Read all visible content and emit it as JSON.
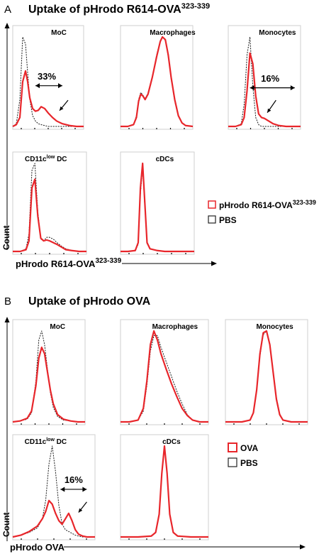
{
  "panel_a": {
    "letter": "A",
    "title": "Uptake of pHrodo R614-OVA",
    "title_sup": "323-339",
    "y_label": "Count",
    "x_label": "pHrodo R614-OVA",
    "x_label_sup": "323-339",
    "legend": [
      {
        "label": "pHrodo R614-OVA",
        "sup": "323-339",
        "color": "#e8262b"
      },
      {
        "label": "PBS",
        "sup": "",
        "color": "#222222"
      }
    ]
  },
  "panel_b": {
    "letter": "B",
    "title": "Uptake of pHrodo OVA",
    "y_label": "Count",
    "x_label": "pHrodo OVA",
    "legend": [
      {
        "label": "OVA",
        "sup": "",
        "color": "#e8262b"
      },
      {
        "label": "PBS",
        "sup": "",
        "color": "#222222"
      }
    ]
  },
  "colors": {
    "treated": "#e8262b",
    "control": "#1a1a1a",
    "frame": "#cfcfcf"
  },
  "chart_data": [
    {
      "type": "area",
      "panel": "A",
      "title": "MoC",
      "annotation": "33%",
      "x": [
        0.0,
        0.05,
        0.1,
        0.14,
        0.18,
        0.21,
        0.24,
        0.28,
        0.32,
        0.36,
        0.4,
        0.45,
        0.5,
        0.56,
        0.62,
        0.7,
        0.8,
        0.9,
        1.0
      ],
      "series": [
        {
          "name": "pHrodo R614-OVA323-339",
          "values": [
            0.0,
            0.02,
            0.1,
            0.5,
            0.62,
            0.5,
            0.32,
            0.2,
            0.17,
            0.18,
            0.22,
            0.2,
            0.15,
            0.1,
            0.06,
            0.03,
            0.01,
            0.0,
            0.0
          ]
        },
        {
          "name": "PBS",
          "values": [
            0.0,
            0.03,
            0.3,
            1.0,
            0.92,
            0.6,
            0.3,
            0.12,
            0.06,
            0.03,
            0.02,
            0.01,
            0.0,
            0.0,
            0.0,
            0.0,
            0.0,
            0.0,
            0.0
          ]
        }
      ]
    },
    {
      "type": "area",
      "panel": "A",
      "title": "Macrophages",
      "x": [
        0.0,
        0.1,
        0.18,
        0.22,
        0.25,
        0.28,
        0.31,
        0.34,
        0.38,
        0.44,
        0.5,
        0.55,
        0.58,
        0.62,
        0.66,
        0.7,
        0.75,
        0.8,
        0.85,
        0.9,
        1.0
      ],
      "series": [
        {
          "name": "pHrodo R614-OVA323-339",
          "values": [
            0.0,
            0.0,
            0.02,
            0.1,
            0.28,
            0.36,
            0.34,
            0.3,
            0.36,
            0.55,
            0.78,
            0.95,
            1.0,
            0.97,
            0.8,
            0.55,
            0.3,
            0.12,
            0.04,
            0.01,
            0.0
          ]
        },
        {
          "name": "PBS",
          "values": [
            0.0,
            0.0,
            0.02,
            0.12,
            0.3,
            0.38,
            0.35,
            0.31,
            0.37,
            0.56,
            0.8,
            0.96,
            1.0,
            0.96,
            0.78,
            0.53,
            0.28,
            0.11,
            0.04,
            0.01,
            0.0
          ]
        }
      ]
    },
    {
      "type": "area",
      "panel": "A",
      "title": "Monocytes",
      "annotation": "16%",
      "x": [
        0.0,
        0.1,
        0.18,
        0.22,
        0.26,
        0.3,
        0.34,
        0.38,
        0.42,
        0.46,
        0.5,
        0.56,
        0.62,
        0.7,
        0.8,
        1.0
      ],
      "series": [
        {
          "name": "pHrodo R614-OVA323-339",
          "values": [
            0.0,
            0.0,
            0.02,
            0.1,
            0.4,
            0.82,
            0.7,
            0.34,
            0.14,
            0.1,
            0.09,
            0.06,
            0.03,
            0.01,
            0.0,
            0.0
          ]
        },
        {
          "name": "PBS",
          "values": [
            0.0,
            0.0,
            0.03,
            0.25,
            0.8,
            1.0,
            0.45,
            0.1,
            0.02,
            0.0,
            0.0,
            0.0,
            0.0,
            0.0,
            0.0,
            0.0
          ]
        }
      ]
    },
    {
      "type": "area",
      "panel": "A",
      "title": "CD11clow DC",
      "x": [
        0.0,
        0.1,
        0.18,
        0.22,
        0.26,
        0.3,
        0.34,
        0.38,
        0.42,
        0.46,
        0.5,
        0.55,
        0.6,
        0.66,
        0.72,
        0.8,
        0.9,
        1.0
      ],
      "series": [
        {
          "name": "pHrodo R614-OVA323-339",
          "values": [
            0.0,
            0.0,
            0.02,
            0.12,
            0.72,
            0.82,
            0.4,
            0.15,
            0.12,
            0.13,
            0.12,
            0.1,
            0.08,
            0.05,
            0.02,
            0.01,
            0.0,
            0.0
          ]
        },
        {
          "name": "PBS",
          "values": [
            0.0,
            0.0,
            0.03,
            0.2,
            0.92,
            1.0,
            0.45,
            0.14,
            0.12,
            0.16,
            0.16,
            0.14,
            0.1,
            0.06,
            0.03,
            0.01,
            0.0,
            0.0
          ]
        }
      ]
    },
    {
      "type": "area",
      "panel": "A",
      "title": "cDCs",
      "x": [
        0.0,
        0.1,
        0.2,
        0.24,
        0.27,
        0.3,
        0.33,
        0.36,
        0.4,
        0.45,
        0.5,
        0.6,
        0.7,
        1.0
      ],
      "series": [
        {
          "name": "pHrodo R614-OVA323-339",
          "values": [
            0.0,
            0.0,
            0.01,
            0.1,
            0.72,
            1.0,
            0.55,
            0.1,
            0.03,
            0.02,
            0.01,
            0.0,
            0.0,
            0.0
          ]
        },
        {
          "name": "PBS",
          "values": [
            0.0,
            0.0,
            0.01,
            0.08,
            0.65,
            0.95,
            0.5,
            0.09,
            0.03,
            0.02,
            0.01,
            0.0,
            0.0,
            0.0
          ]
        }
      ]
    },
    {
      "type": "area",
      "panel": "B",
      "title": "MoC",
      "x": [
        0.0,
        0.1,
        0.2,
        0.26,
        0.32,
        0.36,
        0.4,
        0.44,
        0.48,
        0.52,
        0.56,
        0.62,
        0.7,
        0.8,
        0.9,
        1.0
      ],
      "series": [
        {
          "name": "OVA",
          "values": [
            0.0,
            0.01,
            0.04,
            0.12,
            0.4,
            0.7,
            0.82,
            0.75,
            0.55,
            0.35,
            0.2,
            0.08,
            0.03,
            0.01,
            0.0,
            0.0
          ]
        },
        {
          "name": "PBS",
          "values": [
            0.0,
            0.01,
            0.03,
            0.1,
            0.45,
            0.9,
            1.0,
            0.85,
            0.58,
            0.32,
            0.16,
            0.06,
            0.02,
            0.01,
            0.0,
            0.0
          ]
        }
      ]
    },
    {
      "type": "area",
      "panel": "B",
      "title": "Macrophages",
      "x": [
        0.0,
        0.1,
        0.2,
        0.26,
        0.3,
        0.34,
        0.38,
        0.42,
        0.46,
        0.52,
        0.58,
        0.64,
        0.7,
        0.76,
        0.82,
        0.9,
        1.0
      ],
      "series": [
        {
          "name": "OVA",
          "values": [
            0.0,
            0.0,
            0.02,
            0.15,
            0.45,
            0.85,
            1.0,
            0.9,
            0.75,
            0.58,
            0.42,
            0.28,
            0.15,
            0.07,
            0.02,
            0.0,
            0.0
          ]
        },
        {
          "name": "PBS",
          "values": [
            0.0,
            0.0,
            0.02,
            0.12,
            0.4,
            0.78,
            0.95,
            0.95,
            0.82,
            0.66,
            0.5,
            0.34,
            0.2,
            0.08,
            0.02,
            0.0,
            0.0
          ]
        }
      ]
    },
    {
      "type": "area",
      "panel": "B",
      "title": "Monocytes",
      "x": [
        0.0,
        0.2,
        0.3,
        0.34,
        0.38,
        0.42,
        0.46,
        0.5,
        0.54,
        0.58,
        0.62,
        0.66,
        0.7,
        0.8,
        1.0
      ],
      "series": [
        {
          "name": "OVA",
          "values": [
            0.0,
            0.0,
            0.02,
            0.1,
            0.35,
            0.75,
            0.98,
            1.0,
            0.85,
            0.55,
            0.25,
            0.08,
            0.02,
            0.0,
            0.0
          ]
        },
        {
          "name": "PBS",
          "values": [
            0.0,
            0.0,
            0.02,
            0.1,
            0.33,
            0.72,
            0.96,
            1.0,
            0.86,
            0.57,
            0.27,
            0.09,
            0.02,
            0.0,
            0.0
          ]
        }
      ]
    },
    {
      "type": "area",
      "panel": "B",
      "title": "CD11clow DC",
      "annotation": "16%",
      "x": [
        0.0,
        0.1,
        0.2,
        0.3,
        0.36,
        0.4,
        0.44,
        0.48,
        0.52,
        0.56,
        0.6,
        0.64,
        0.68,
        0.72,
        0.76,
        0.8,
        0.85,
        0.9,
        1.0
      ],
      "series": [
        {
          "name": "OVA",
          "values": [
            0.0,
            0.02,
            0.06,
            0.12,
            0.2,
            0.28,
            0.4,
            0.36,
            0.26,
            0.18,
            0.14,
            0.2,
            0.26,
            0.18,
            0.08,
            0.03,
            0.01,
            0.0,
            0.0
          ]
        },
        {
          "name": "PBS",
          "values": [
            0.0,
            0.02,
            0.05,
            0.1,
            0.2,
            0.4,
            0.8,
            1.0,
            0.72,
            0.35,
            0.14,
            0.08,
            0.06,
            0.04,
            0.02,
            0.01,
            0.0,
            0.0,
            0.0
          ]
        }
      ]
    },
    {
      "type": "area",
      "panel": "B",
      "title": "cDCs",
      "x": [
        0.0,
        0.2,
        0.35,
        0.4,
        0.44,
        0.47,
        0.5,
        0.53,
        0.56,
        0.6,
        0.65,
        0.8,
        1.0
      ],
      "series": [
        {
          "name": "OVA",
          "values": [
            0.0,
            0.0,
            0.01,
            0.05,
            0.25,
            0.7,
            1.0,
            0.7,
            0.25,
            0.05,
            0.01,
            0.0,
            0.0
          ]
        },
        {
          "name": "PBS",
          "values": [
            0.0,
            0.0,
            0.01,
            0.05,
            0.24,
            0.69,
            0.99,
            0.69,
            0.24,
            0.05,
            0.01,
            0.0,
            0.0
          ]
        }
      ]
    }
  ]
}
